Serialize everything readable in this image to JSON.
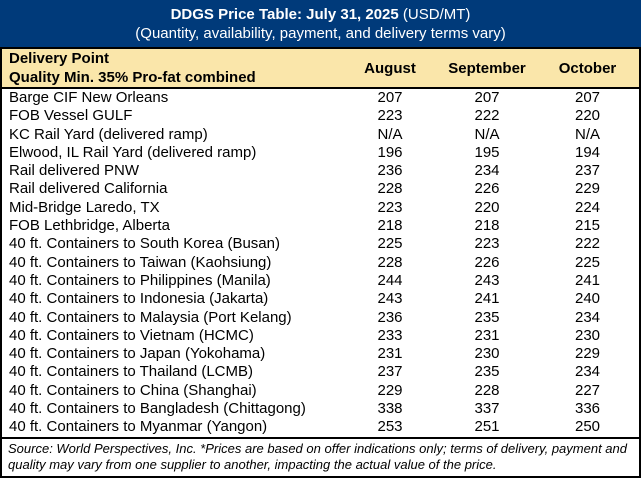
{
  "title": {
    "main_bold": "DDGS Price Table: July 31, 2025",
    "main_unit": " (USD/MT)",
    "subtitle": "(Quantity, availability, payment, and delivery terms vary)"
  },
  "header": {
    "col1_line1": "Delivery Point",
    "col1_line2": "Quality Min. 35% Pro-fat combined",
    "months": [
      "August",
      "September",
      "October"
    ]
  },
  "chart_data": {
    "type": "table",
    "title": "DDGS Price Table: July 31, 2025 (USD/MT)",
    "subtitle": "(Quantity, availability, payment, and delivery terms vary)",
    "columns": [
      "Delivery Point / Quality Min. 35% Pro-fat combined",
      "August",
      "September",
      "October"
    ],
    "rows": [
      [
        "Barge CIF New Orleans",
        "207",
        "207",
        "207"
      ],
      [
        "FOB Vessel GULF",
        "223",
        "222",
        "220"
      ],
      [
        "KC Rail Yard (delivered ramp)",
        "N/A",
        "N/A",
        "N/A"
      ],
      [
        "Elwood, IL Rail Yard (delivered ramp)",
        "196",
        "195",
        "194"
      ],
      [
        "Rail delivered PNW",
        "236",
        "234",
        "237"
      ],
      [
        "Rail delivered California",
        "228",
        "226",
        "229"
      ],
      [
        "Mid-Bridge Laredo, TX",
        "223",
        "220",
        "224"
      ],
      [
        "FOB Lethbridge, Alberta",
        "218",
        "218",
        "215"
      ],
      [
        "40 ft. Containers to South Korea (Busan)",
        "225",
        "223",
        "222"
      ],
      [
        "40 ft. Containers to Taiwan (Kaohsiung)",
        "228",
        "226",
        "225"
      ],
      [
        "40 ft. Containers to Philippines (Manila)",
        "244",
        "243",
        "241"
      ],
      [
        "40 ft. Containers to Indonesia (Jakarta)",
        "243",
        "241",
        "240"
      ],
      [
        "40 ft. Containers to Malaysia (Port Kelang)",
        "236",
        "235",
        "234"
      ],
      [
        "40 ft. Containers to Vietnam (HCMC)",
        "233",
        "231",
        "230"
      ],
      [
        "40 ft. Containers to Japan (Yokohama)",
        "231",
        "230",
        "229"
      ],
      [
        "40 ft. Containers to Thailand (LCMB)",
        "237",
        "235",
        "234"
      ],
      [
        "40 ft. Containers to China (Shanghai)",
        "229",
        "228",
        "227"
      ],
      [
        "40 ft. Containers to Bangladesh (Chittagong)",
        "338",
        "337",
        "336"
      ],
      [
        "40 ft. Containers to Myanmar (Yangon)",
        "253",
        "251",
        "250"
      ]
    ]
  },
  "footer": {
    "source_note": "Source: World Perspectives, Inc. *Prices are based on offer indications only; terms of delivery, payment and quality may vary from one supplier to another, impacting the actual value of the price."
  },
  "colors": {
    "navy_header": "#003A7A",
    "tan_header": "#FAE6AA",
    "border": "#000000",
    "text": "#000000",
    "background": "#FFFFFF"
  }
}
